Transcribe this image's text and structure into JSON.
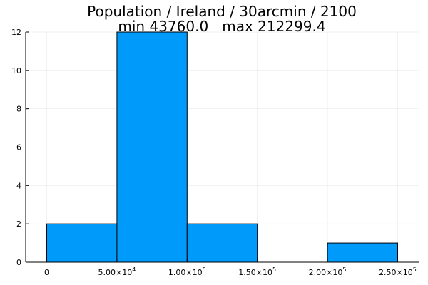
{
  "chart_data": {
    "type": "bar",
    "title_line1": "Population / Ireland / 30arcmin / 2100",
    "title_line2": "min 43760.0   max 212299.4",
    "bins": [
      {
        "start": 0,
        "end": 50000,
        "count": 2
      },
      {
        "start": 50000,
        "end": 100000,
        "count": 12
      },
      {
        "start": 100000,
        "end": 150000,
        "count": 2
      },
      {
        "start": 150000,
        "end": 200000,
        "count": 0
      },
      {
        "start": 200000,
        "end": 250000,
        "count": 1
      }
    ],
    "xlim": [
      -15000,
      265000
    ],
    "ylim": [
      0,
      12
    ],
    "x_ticks": [
      {
        "value": 0,
        "mantissa": "0",
        "exponent": ""
      },
      {
        "value": 50000,
        "mantissa": "5.00×10",
        "exponent": "4"
      },
      {
        "value": 100000,
        "mantissa": "1.00×10",
        "exponent": "5"
      },
      {
        "value": 150000,
        "mantissa": "1.50×10",
        "exponent": "5"
      },
      {
        "value": 200000,
        "mantissa": "2.00×10",
        "exponent": "5"
      },
      {
        "value": 250000,
        "mantissa": "2.50×10",
        "exponent": "5"
      }
    ],
    "y_ticks": [
      0,
      2,
      4,
      6,
      8,
      10,
      12
    ],
    "grid": true,
    "legend": false,
    "bar_color": "#009AFA",
    "bar_edge_color": "#000000"
  }
}
